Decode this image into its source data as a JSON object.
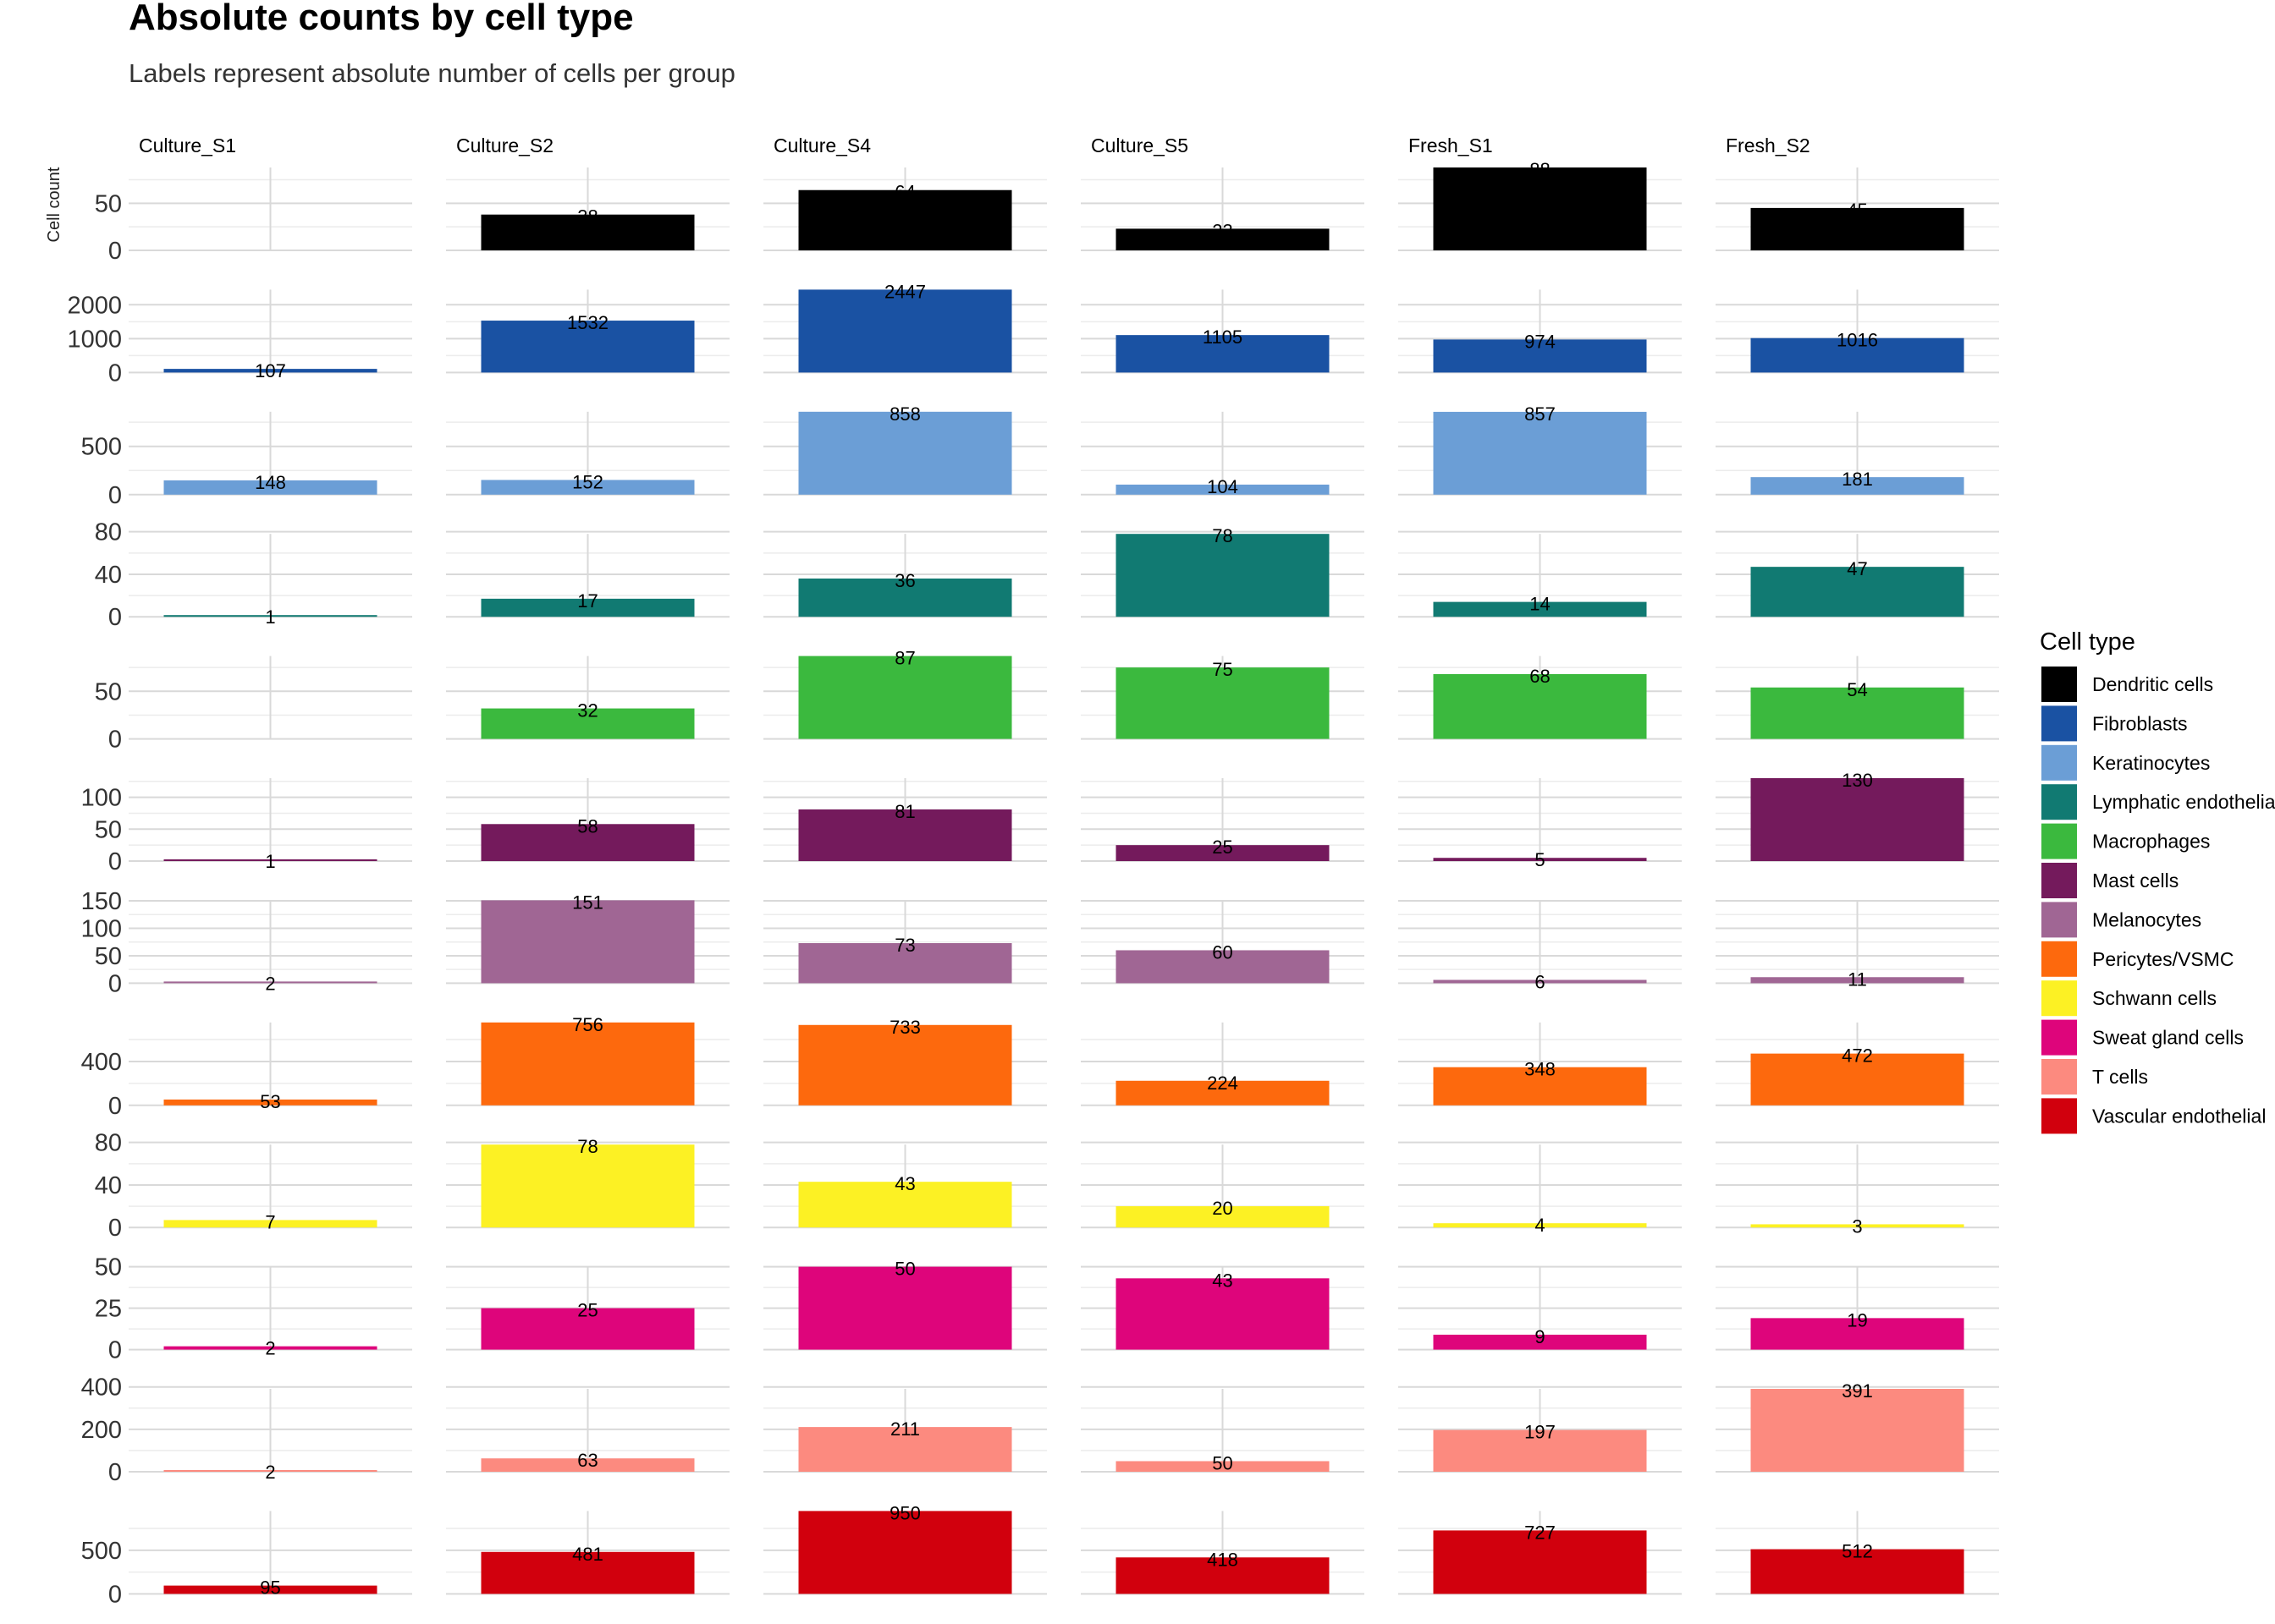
{
  "chart_data": {
    "type": "bar",
    "title": "Absolute counts by cell type",
    "subtitle": "Labels represent absolute number of cells per group",
    "ylabel": "Cell count",
    "xlabel": "",
    "facet_columns": [
      "Culture_S1",
      "Culture_S2",
      "Culture_S4",
      "Culture_S5",
      "Fresh_S1",
      "Fresh_S2"
    ],
    "legend": {
      "title": "Cell type",
      "position": "right"
    },
    "grid": true,
    "rows": [
      {
        "name": "Dendritic cells",
        "color": "#000000",
        "ylim": [
          0,
          88
        ],
        "ticks": [
          0,
          50
        ],
        "values": [
          0,
          38,
          64,
          23,
          88,
          45
        ]
      },
      {
        "name": "Fibroblasts",
        "color": "#1a52a3",
        "ylim": [
          0,
          2447
        ],
        "ticks": [
          0,
          1000,
          2000
        ],
        "values": [
          107,
          1532,
          2447,
          1105,
          974,
          1016
        ]
      },
      {
        "name": "Keratinocytes",
        "color": "#6b9ed6",
        "ylim": [
          0,
          858
        ],
        "ticks": [
          0,
          500
        ],
        "values": [
          148,
          152,
          858,
          104,
          857,
          181
        ]
      },
      {
        "name": "Lymphatic endothelial",
        "color": "#117a72",
        "ylim": [
          0,
          78
        ],
        "ticks": [
          0,
          40,
          80
        ],
        "values": [
          1,
          17,
          36,
          78,
          14,
          47
        ]
      },
      {
        "name": "Macrophages",
        "color": "#3bb93e",
        "ylim": [
          0,
          87
        ],
        "ticks": [
          0,
          50
        ],
        "values": [
          0,
          32,
          87,
          75,
          68,
          54
        ]
      },
      {
        "name": "Mast cells",
        "color": "#741a5c",
        "ylim": [
          0,
          130
        ],
        "ticks": [
          0,
          50,
          100
        ],
        "values": [
          1,
          58,
          81,
          25,
          5,
          130
        ]
      },
      {
        "name": "Melanocytes",
        "color": "#a06694",
        "ylim": [
          0,
          151
        ],
        "ticks": [
          0,
          50,
          100,
          150
        ],
        "values": [
          2,
          151,
          73,
          60,
          6,
          11
        ]
      },
      {
        "name": "Pericytes/VSMC",
        "color": "#fd690d",
        "ylim": [
          0,
          756
        ],
        "ticks": [
          0,
          400
        ],
        "values": [
          53,
          756,
          733,
          224,
          348,
          472
        ]
      },
      {
        "name": "Schwann cells",
        "color": "#fcf124",
        "ylim": [
          0,
          78
        ],
        "ticks": [
          0,
          40,
          80
        ],
        "values": [
          7,
          78,
          43,
          20,
          4,
          3
        ]
      },
      {
        "name": "Sweat gland cells",
        "color": "#de057b",
        "ylim": [
          0,
          50
        ],
        "ticks": [
          0,
          25,
          50
        ],
        "values": [
          2,
          25,
          50,
          43,
          9,
          19
        ]
      },
      {
        "name": "T cells",
        "color": "#fc8a7f",
        "ylim": [
          0,
          391
        ],
        "ticks": [
          0,
          200,
          400
        ],
        "values": [
          2,
          63,
          211,
          50,
          197,
          391
        ]
      },
      {
        "name": "Vascular endothelial",
        "color": "#d1000d",
        "ylim": [
          0,
          950
        ],
        "ticks": [
          0,
          500
        ],
        "values": [
          95,
          481,
          950,
          418,
          727,
          512
        ]
      }
    ]
  }
}
